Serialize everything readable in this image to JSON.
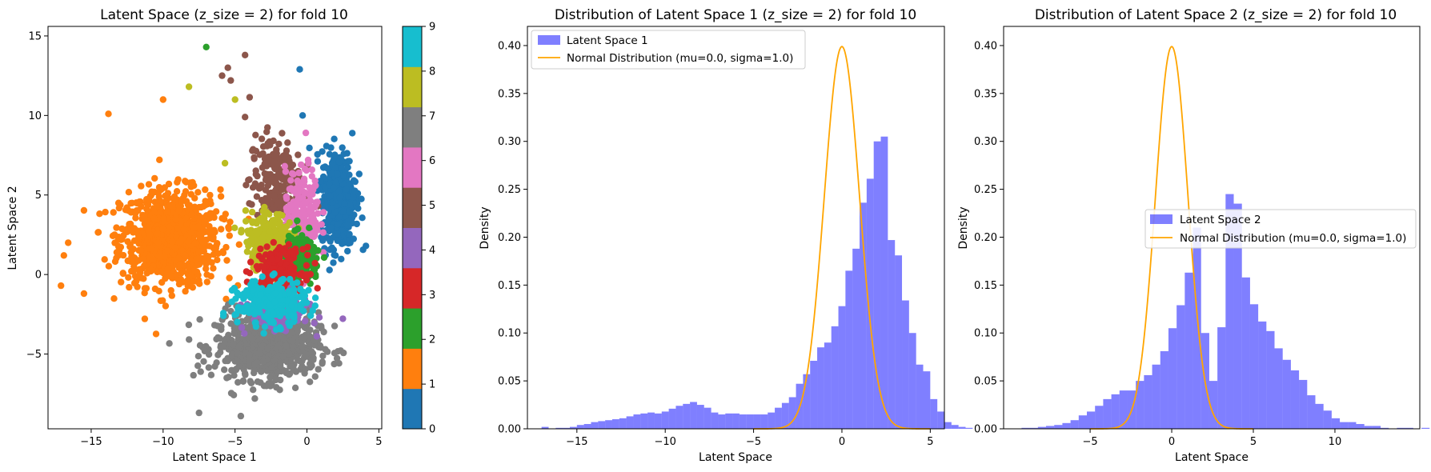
{
  "chart_data": [
    {
      "type": "scatter",
      "title": "Latent Space (z_size = 2) for fold 10",
      "xlabel": "Latent Space 1",
      "ylabel": "Latent Space 2",
      "xlim": [
        -18,
        5.2
      ],
      "ylim": [
        -9.7,
        15.6
      ],
      "xticks": [
        -15,
        -10,
        -5,
        0,
        5
      ],
      "yticks": [
        -5,
        0,
        5,
        10,
        15
      ],
      "colorbar": {
        "type": "categorical",
        "range": [
          0,
          9
        ],
        "ticks": [
          0,
          1,
          2,
          3,
          4,
          5,
          6,
          7,
          8,
          9
        ],
        "colors": [
          "#1f77b4",
          "#ff7f0e",
          "#2ca02c",
          "#d62728",
          "#9467bd",
          "#8c564b",
          "#e377c2",
          "#7f7f7f",
          "#bcbd22",
          "#17becf"
        ]
      },
      "clusters": [
        {
          "label": 1,
          "center": [
            -9.5,
            2.3
          ],
          "spread": [
            2.3,
            2.0
          ],
          "count": 900
        },
        {
          "label": 7,
          "center": [
            -2.8,
            -4.5
          ],
          "spread": [
            2.4,
            1.4
          ],
          "count": 700
        },
        {
          "label": 0,
          "center": [
            2.2,
            4.8
          ],
          "spread": [
            0.8,
            2.0
          ],
          "count": 450
        },
        {
          "label": 5,
          "center": [
            -2.2,
            5.8
          ],
          "spread": [
            1.2,
            2.0
          ],
          "count": 220
        },
        {
          "label": 6,
          "center": [
            -0.3,
            3.8
          ],
          "spread": [
            0.8,
            1.9
          ],
          "count": 200
        },
        {
          "label": 8,
          "center": [
            -2.6,
            2.2
          ],
          "spread": [
            1.1,
            1.1
          ],
          "count": 250
        },
        {
          "label": 2,
          "center": [
            -0.4,
            0.9
          ],
          "spread": [
            0.9,
            1.0
          ],
          "count": 200
        },
        {
          "label": 3,
          "center": [
            -1.9,
            0.3
          ],
          "spread": [
            1.1,
            0.9
          ],
          "count": 220
        },
        {
          "label": 4,
          "center": [
            -2.0,
            -2.3
          ],
          "spread": [
            1.4,
            0.7
          ],
          "count": 200
        },
        {
          "label": 9,
          "center": [
            -2.5,
            -1.8
          ],
          "spread": [
            1.6,
            0.9
          ],
          "count": 280
        }
      ],
      "outliers": [
        {
          "x": -7.0,
          "y": 14.3,
          "label": 2
        },
        {
          "x": -5.5,
          "y": 13.0,
          "label": 5
        },
        {
          "x": -4.3,
          "y": 13.8,
          "label": 5
        },
        {
          "x": -5.9,
          "y": 12.5,
          "label": 5
        },
        {
          "x": -5.3,
          "y": 12.2,
          "label": 5
        },
        {
          "x": -8.2,
          "y": 11.8,
          "label": 8
        },
        {
          "x": -0.5,
          "y": 12.9,
          "label": 0
        },
        {
          "x": -5.0,
          "y": 11.0,
          "label": 8
        },
        {
          "x": -10.0,
          "y": 11.0,
          "label": 1
        },
        {
          "x": -13.8,
          "y": 10.1,
          "label": 1
        },
        {
          "x": -0.3,
          "y": 10.0,
          "label": 0
        },
        {
          "x": -4.3,
          "y": 9.9,
          "label": 5
        },
        {
          "x": -5.7,
          "y": 7.0,
          "label": 8
        },
        {
          "x": 4.1,
          "y": 1.8,
          "label": 0
        },
        {
          "x": -16.6,
          "y": 2.0,
          "label": 1
        },
        {
          "x": -16.9,
          "y": 1.2,
          "label": 1
        },
        {
          "x": -17.1,
          "y": -0.7,
          "label": 1
        },
        {
          "x": -15.5,
          "y": -1.2,
          "label": 1
        },
        {
          "x": -7.5,
          "y": -8.7,
          "label": 7
        },
        {
          "x": -4.6,
          "y": -8.9,
          "label": 7
        }
      ]
    },
    {
      "type": "histogram",
      "title": "Distribution of Latent Space 1 (z_size = 2) for fold 10",
      "xlabel": "Latent Space",
      "ylabel": "Density",
      "xlim": [
        -17.8,
        5.8
      ],
      "ylim": [
        0,
        0.42
      ],
      "xticks": [
        -15,
        -10,
        -5,
        0,
        5
      ],
      "yticks": [
        0.0,
        0.05,
        0.1,
        0.15,
        0.2,
        0.25,
        0.3,
        0.35,
        0.4
      ],
      "ytick_labels": [
        "0.00",
        "0.05",
        "0.10",
        "0.15",
        "0.20",
        "0.25",
        "0.30",
        "0.35",
        "0.40"
      ],
      "bins_start": -17.0,
      "bin_width": 0.4,
      "densities": [
        0.002,
        0,
        0.001,
        0.001,
        0.002,
        0.004,
        0.005,
        0.007,
        0.008,
        0.009,
        0.01,
        0.011,
        0.013,
        0.015,
        0.016,
        0.017,
        0.016,
        0.018,
        0.021,
        0.024,
        0.026,
        0.028,
        0.025,
        0.022,
        0.017,
        0.015,
        0.016,
        0.016,
        0.015,
        0.015,
        0.015,
        0.015,
        0.017,
        0.022,
        0.027,
        0.033,
        0.047,
        0.057,
        0.071,
        0.085,
        0.09,
        0.107,
        0.128,
        0.165,
        0.188,
        0.236,
        0.261,
        0.3,
        0.305,
        0.197,
        0.181,
        0.134,
        0.1,
        0.067,
        0.06,
        0.031,
        0.018,
        0.007,
        0.004,
        0.002,
        0.001
      ],
      "hist_color": "#0000ff",
      "hist_alpha": 0.5,
      "curve": {
        "mu": 0.0,
        "sigma": 1.0,
        "color": "#ffa500",
        "x_range": [
          -5,
          5
        ]
      },
      "legend": {
        "position": "upper left",
        "entries": [
          "Latent Space 1",
          "Normal Distribution (mu=0.0, sigma=1.0)"
        ]
      }
    },
    {
      "type": "histogram",
      "title": "Distribution of Latent Space 2 (z_size = 2) for fold 10",
      "xlabel": "Latent Space",
      "ylabel": "Density",
      "xlim": [
        -10.3,
        15.2
      ],
      "ylim": [
        0,
        0.42
      ],
      "xticks": [
        -5,
        0,
        5,
        10
      ],
      "yticks": [
        0.0,
        0.05,
        0.1,
        0.15,
        0.2,
        0.25,
        0.3,
        0.35,
        0.4
      ],
      "ytick_labels": [
        "0.00",
        "0.05",
        "0.10",
        "0.15",
        "0.20",
        "0.25",
        "0.30",
        "0.35",
        "0.40"
      ],
      "bins_start": -9.2,
      "bin_width": 0.5,
      "densities": [
        0.001,
        0.001,
        0.002,
        0.003,
        0.004,
        0.006,
        0.009,
        0.014,
        0.018,
        0.024,
        0.031,
        0.036,
        0.04,
        0.04,
        0.05,
        0.056,
        0.067,
        0.081,
        0.105,
        0.129,
        0.163,
        0.21,
        0.1,
        0.05,
        0.106,
        0.245,
        0.235,
        0.158,
        0.13,
        0.112,
        0.102,
        0.084,
        0.072,
        0.061,
        0.051,
        0.035,
        0.026,
        0.019,
        0.011,
        0.007,
        0.007,
        0.005,
        0.003,
        0.003,
        0.001,
        0,
        0.001,
        0.001,
        0,
        0.001
      ],
      "hist_color": "#0000ff",
      "hist_alpha": 0.5,
      "curve": {
        "mu": 0.0,
        "sigma": 1.0,
        "color": "#ffa500",
        "x_range": [
          -5,
          5
        ]
      },
      "legend": {
        "position": "center right",
        "entries": [
          "Latent Space 2",
          "Normal Distribution (mu=0.0, sigma=1.0)"
        ]
      }
    }
  ]
}
